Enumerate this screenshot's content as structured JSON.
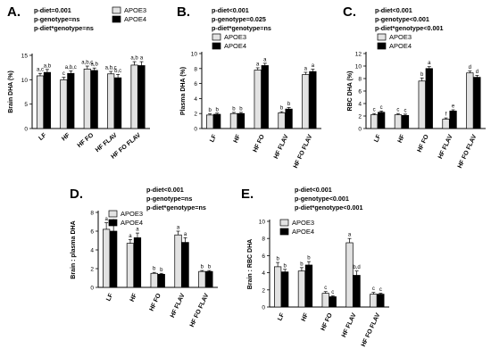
{
  "chart_data": [
    {
      "type": "bar",
      "panel_label": "A.",
      "stats": [
        "p-diet=0.001",
        "p-genotype=ns",
        "p-diet*genotype=ns"
      ],
      "ylabel": "Brain DHA (%)",
      "ylim": [
        0,
        15
      ],
      "yticks": [
        0,
        5,
        10,
        15
      ],
      "categories": [
        "LF",
        "HF",
        "HF FO",
        "HF FLAV",
        "HF FO FLAV"
      ],
      "series": [
        {
          "name": "APOE3",
          "color": "#e2e2e2",
          "values": [
            10.8,
            10.0,
            12.2,
            11.2,
            13.0
          ],
          "errors": [
            0.5,
            0.5,
            0.6,
            0.5,
            0.7
          ],
          "letters": [
            "a,c",
            "c",
            "a,b,c",
            "a,b,c",
            "a,b"
          ]
        },
        {
          "name": "APOE4",
          "color": "#000000",
          "values": [
            11.5,
            11.3,
            11.9,
            10.4,
            12.9
          ],
          "errors": [
            0.6,
            0.5,
            0.5,
            0.7,
            0.8
          ],
          "letters": [
            "a,b",
            "a,b,c",
            "a,b",
            "b,c",
            "a"
          ]
        }
      ],
      "legend_position": "top-right"
    },
    {
      "type": "bar",
      "panel_label": "B.",
      "stats": [
        "p-diet<0.001",
        "p-genotype=0.025",
        "p-diet*genotype=ns"
      ],
      "ylabel": "Plasma DHA (%)",
      "ylim": [
        0,
        10
      ],
      "yticks": [
        0,
        2,
        4,
        6,
        8,
        10
      ],
      "categories": [
        "LF",
        "HF",
        "HF FO",
        "HF FLAV",
        "HF FO FLAV"
      ],
      "series": [
        {
          "name": "APOE3",
          "color": "#e2e2e2",
          "values": [
            1.8,
            2.0,
            7.8,
            2.1,
            7.2
          ],
          "errors": [
            0.15,
            0.15,
            0.3,
            0.15,
            0.3
          ],
          "letters": [
            "b",
            "b",
            "a",
            "b",
            "a"
          ]
        },
        {
          "name": "APOE4",
          "color": "#000000",
          "values": [
            1.9,
            2.0,
            8.4,
            2.6,
            7.6
          ],
          "errors": [
            0.15,
            0.15,
            0.3,
            0.2,
            0.3
          ],
          "letters": [
            "b",
            "b",
            "a",
            "b",
            "a"
          ]
        }
      ],
      "legend_position": "top-left"
    },
    {
      "type": "bar",
      "panel_label": "C.",
      "stats": [
        "p-diet<0.001",
        "p-genotype<0.001",
        "p-diet*genotype<0.001"
      ],
      "ylabel": "RBC DHA (%)",
      "ylim": [
        0,
        12
      ],
      "yticks": [
        0,
        2,
        4,
        6,
        8,
        10,
        12
      ],
      "categories": [
        "LF",
        "HF",
        "HF FO",
        "HF FLAV",
        "HF FO FLAV"
      ],
      "series": [
        {
          "name": "APOE3",
          "color": "#e2e2e2",
          "values": [
            2.2,
            2.2,
            7.6,
            1.5,
            8.9
          ],
          "errors": [
            0.2,
            0.2,
            0.5,
            0.2,
            0.3
          ],
          "letters": [
            "c",
            "c",
            "b",
            "f",
            "d"
          ]
        },
        {
          "name": "APOE4",
          "color": "#000000",
          "values": [
            2.6,
            2.1,
            9.6,
            2.8,
            8.2
          ],
          "errors": [
            0.2,
            0.2,
            0.3,
            0.2,
            0.3
          ],
          "letters": [
            "c",
            "c",
            "a",
            "e",
            "d"
          ]
        }
      ],
      "legend_position": "top-left"
    },
    {
      "type": "bar",
      "panel_label": "D.",
      "stats": [
        "p-diet<0.001",
        "p-genotype=ns",
        "p-diet*genotype=ns"
      ],
      "ylabel": "Brain : plasma DHA",
      "ylim": [
        0,
        8
      ],
      "yticks": [
        0,
        2,
        4,
        6,
        8
      ],
      "categories": [
        "LF",
        "HF",
        "HF FO",
        "HF FLAV",
        "HF FO FLAV"
      ],
      "series": [
        {
          "name": "APOE3",
          "color": "#e2e2e2",
          "values": [
            6.2,
            4.7,
            1.5,
            5.6,
            1.7
          ],
          "errors": [
            0.7,
            0.4,
            0.1,
            0.4,
            0.1
          ],
          "letters": [
            "a",
            "a",
            "b",
            "a",
            "b"
          ]
        },
        {
          "name": "APOE4",
          "color": "#000000",
          "values": [
            6.0,
            5.3,
            1.4,
            4.8,
            1.7
          ],
          "errors": [
            0.7,
            0.5,
            0.1,
            0.5,
            0.1
          ],
          "letters": [
            "a",
            "a",
            "b",
            "a",
            "b"
          ]
        }
      ],
      "legend_position": "top-left"
    },
    {
      "type": "bar",
      "panel_label": "E.",
      "stats": [
        "p-diet<0.001",
        "p-genotype<0.001",
        "p-diet*genotype<0.001"
      ],
      "ylabel": "Brain : RBC DHA",
      "ylim": [
        0,
        10
      ],
      "yticks": [
        0,
        2,
        4,
        6,
        8,
        10
      ],
      "categories": [
        "LF",
        "HF",
        "HF FO",
        "HF FLAV",
        "HF FO FLAV"
      ],
      "series": [
        {
          "name": "APOE3",
          "color": "#e2e2e2",
          "values": [
            4.7,
            4.2,
            1.6,
            7.5,
            1.5
          ],
          "errors": [
            0.5,
            0.4,
            0.2,
            0.5,
            0.2
          ],
          "letters": [
            "b",
            "b",
            "c",
            "a",
            "c"
          ]
        },
        {
          "name": "APOE4",
          "color": "#000000",
          "values": [
            4.1,
            4.9,
            1.2,
            3.7,
            1.5
          ],
          "errors": [
            0.3,
            0.4,
            0.1,
            0.5,
            0.1
          ],
          "letters": [
            "b",
            "b",
            "c",
            "b,d",
            "c"
          ]
        }
      ],
      "legend_position": "top-left"
    }
  ]
}
